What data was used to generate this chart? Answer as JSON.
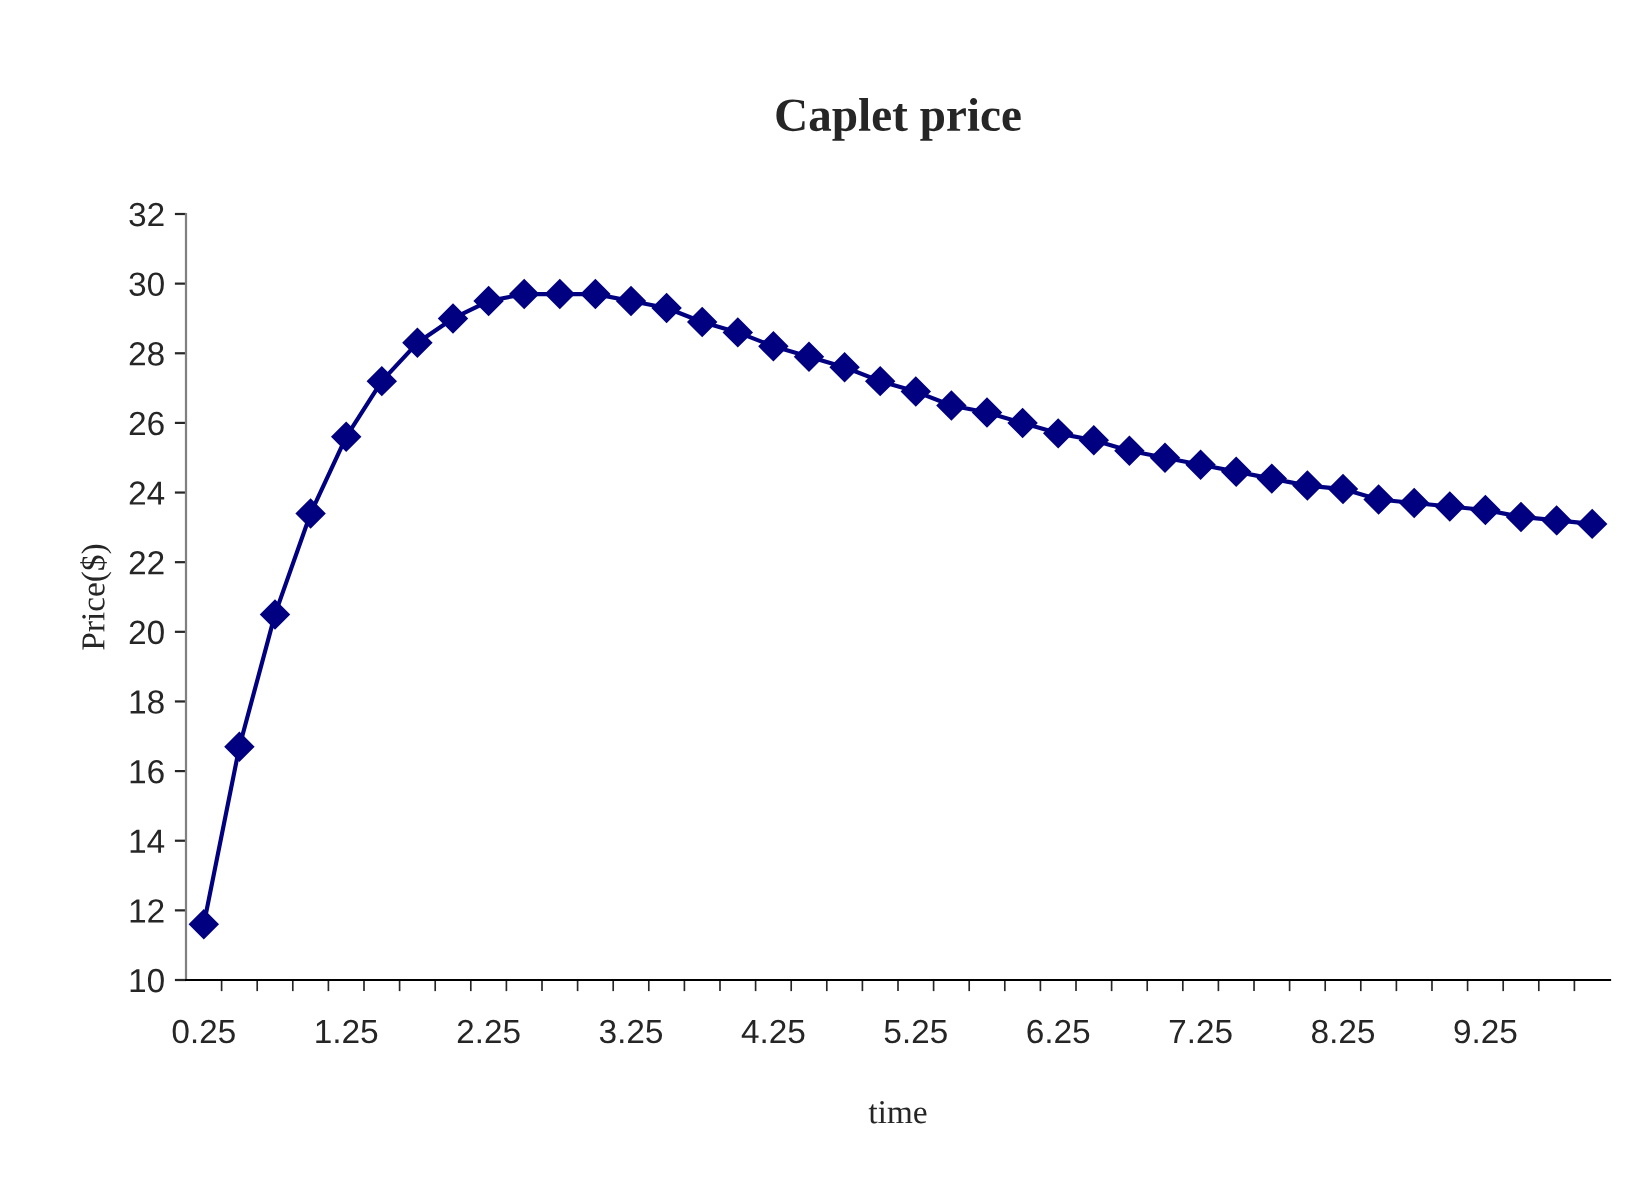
{
  "chart_data": {
    "type": "line",
    "title": "Caplet price",
    "xlabel": "time",
    "ylabel": "Price($)",
    "categories": [
      "0.25",
      null,
      null,
      null,
      "1.25",
      null,
      null,
      null,
      "2.25",
      null,
      null,
      null,
      "3.25",
      null,
      null,
      null,
      "4.25",
      null,
      null,
      null,
      "5.25",
      null,
      null,
      null,
      "6.25",
      null,
      null,
      null,
      "7.25",
      null,
      null,
      null,
      "8.25",
      null,
      null,
      null,
      "9.25",
      null,
      null,
      null
    ],
    "series": [
      {
        "color": "#000080",
        "values": [
          11.6,
          16.7,
          20.5,
          23.4,
          25.6,
          27.2,
          28.3,
          29.0,
          29.5,
          29.7,
          29.7,
          29.7,
          29.5,
          29.3,
          28.9,
          28.6,
          28.2,
          27.9,
          27.6,
          27.2,
          26.9,
          26.5,
          26.3,
          26.0,
          25.7,
          25.5,
          25.2,
          25.0,
          24.8,
          24.6,
          24.4,
          24.2,
          24.1,
          23.8,
          23.7,
          23.6,
          23.5,
          23.3,
          23.2,
          23.1
        ]
      }
    ],
    "ylim": [
      10,
      32
    ],
    "yticks": [
      10,
      12,
      14,
      16,
      18,
      20,
      22,
      24,
      26,
      28,
      30,
      32
    ],
    "marker": "diamond",
    "line_style": "solid",
    "grid": false,
    "legend": false
  }
}
